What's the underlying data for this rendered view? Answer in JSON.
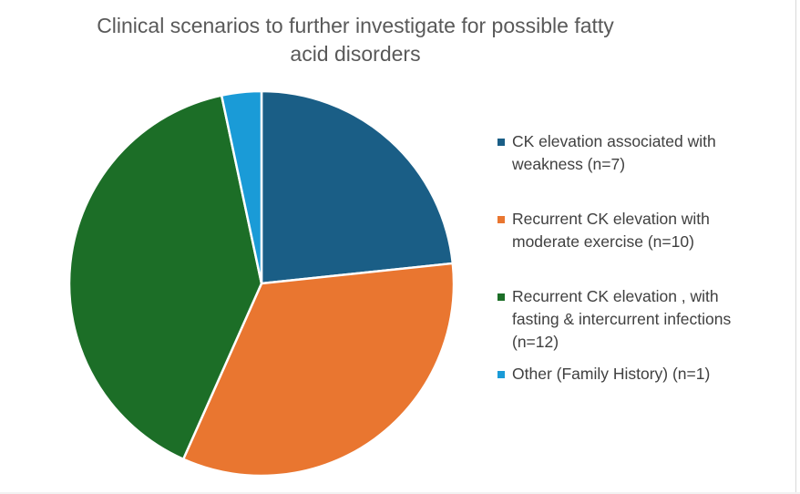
{
  "chart_data": {
    "type": "pie",
    "title": "Clinical scenarios to further investigate for possible fatty acid disorders",
    "categories": [
      "CK elevation associated with weakness (n=7)",
      "Recurrent CK elevation with moderate exercise (n=10)",
      "Recurrent CK elevation , with fasting & intercurrent infections (n=12)",
      "Other (Family History) (n=1)"
    ],
    "values": [
      7,
      10,
      12,
      1
    ],
    "colors": [
      "#1a5e86",
      "#e97630",
      "#1c6e27",
      "#1a9bd7"
    ],
    "legend_position": "right",
    "start_angle": "12 o'clock",
    "direction": "clockwise"
  }
}
